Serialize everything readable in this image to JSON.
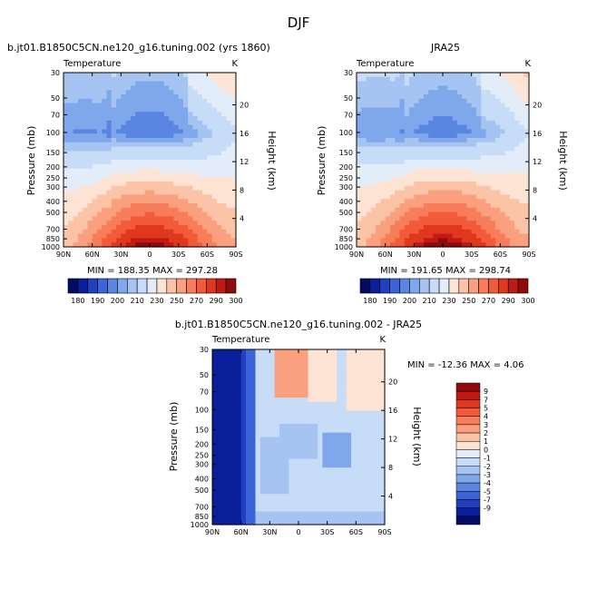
{
  "page": {
    "title": "DJF"
  },
  "colors": {
    "pos": [
      "#fde3d3",
      "#fcc4a7",
      "#fba07e",
      "#f87d5b",
      "#f25a3a",
      "#e0381f",
      "#c01a14",
      "#8f0b0c"
    ],
    "neg": [
      "#e3edfa",
      "#c7dcf7",
      "#a6c4f2",
      "#7fa8ec",
      "#5a86e2",
      "#3b64d6",
      "#1f40c0",
      "#0a1f9a",
      "#020c64"
    ],
    "abs": [
      "#020c64",
      "#0a1f9a",
      "#1f40c0",
      "#3b64d6",
      "#5a86e2",
      "#7fa8ec",
      "#a6c4f2",
      "#c7dcf7",
      "#e3edfa",
      "#fde3d3",
      "#fcc4a7",
      "#fba07e",
      "#f87d5b",
      "#f25a3a",
      "#e0381f",
      "#c01a14",
      "#8f0b0c"
    ]
  },
  "chart_data": [
    {
      "type": "heatmap",
      "id": "model",
      "title": "b.jt01.B1850C5CN.ne120_g16.tuning.002 (yrs 1860)",
      "variable": "Temperature",
      "units": "K",
      "ylabel": "Pressure (mb)",
      "y2label": "Height (km)",
      "x_ticks": [
        "90N",
        "60N",
        "30N",
        "0",
        "30S",
        "60S",
        "90S"
      ],
      "x_range": [
        90,
        -90
      ],
      "y_ticks": [
        "30",
        "50",
        "70",
        "100",
        "150",
        "200",
        "250",
        "300",
        "400",
        "500",
        "700",
        "850",
        "1000"
      ],
      "y_range_mb": [
        30,
        1000
      ],
      "y2_ticks": [
        "20",
        "16",
        "12",
        "8",
        "4"
      ],
      "min": 188.35,
      "max": 297.28,
      "stats_text": "MIN = 188.35   MAX = 297.28"
    },
    {
      "type": "heatmap",
      "id": "obs",
      "title": "JRA25",
      "variable": "Temperature",
      "units": "K",
      "ylabel": "Pressure (mb)",
      "y2label": "Height (km)",
      "x_ticks": [
        "90N",
        "60N",
        "30N",
        "0",
        "30S",
        "60S",
        "90S"
      ],
      "x_range": [
        90,
        -90
      ],
      "y_ticks": [
        "30",
        "50",
        "70",
        "100",
        "150",
        "200",
        "250",
        "300",
        "400",
        "500",
        "700",
        "850",
        "1000"
      ],
      "y_range_mb": [
        30,
        1000
      ],
      "y2_ticks": [
        "20",
        "16",
        "12",
        "8",
        "4"
      ],
      "min": 191.65,
      "max": 298.74,
      "stats_text": "MIN = 191.65   MAX = 298.74"
    },
    {
      "type": "heatmap",
      "id": "diff",
      "title": "b.jt01.B1850C5CN.ne120_g16.tuning.002 - JRA25",
      "variable": "Temperature",
      "units": "K",
      "ylabel": "Pressure (mb)",
      "y2label": "Height (km)",
      "x_ticks": [
        "90N",
        "60N",
        "30N",
        "0",
        "30S",
        "60S",
        "90S"
      ],
      "x_range": [
        90,
        -90
      ],
      "y_ticks": [
        "30",
        "50",
        "70",
        "100",
        "150",
        "200",
        "250",
        "300",
        "400",
        "500",
        "700",
        "850",
        "1000"
      ],
      "y_range_mb": [
        30,
        1000
      ],
      "y2_ticks": [
        "20",
        "16",
        "12",
        "8",
        "4"
      ],
      "min": -12.36,
      "max": 4.06,
      "stats_text": "MIN = -12.36   MAX =    4.06"
    }
  ],
  "colorbar_abs": {
    "labels": [
      "180",
      "190",
      "200",
      "210",
      "230",
      "250",
      "270",
      "290",
      "300"
    ],
    "levels": [
      180,
      185,
      190,
      195,
      200,
      205,
      210,
      220,
      230,
      240,
      250,
      260,
      270,
      280,
      290,
      295,
      300
    ]
  },
  "colorbar_diff": {
    "labels": [
      "9",
      "7",
      "5",
      "4",
      "3",
      "2",
      "1",
      "0",
      "-1",
      "-2",
      "-3",
      "-4",
      "-5",
      "-7",
      "-9"
    ],
    "levels": [
      9,
      7,
      5,
      4,
      3,
      2,
      1,
      0,
      -1,
      -2,
      -3,
      -4,
      -5,
      -7,
      -9
    ]
  }
}
